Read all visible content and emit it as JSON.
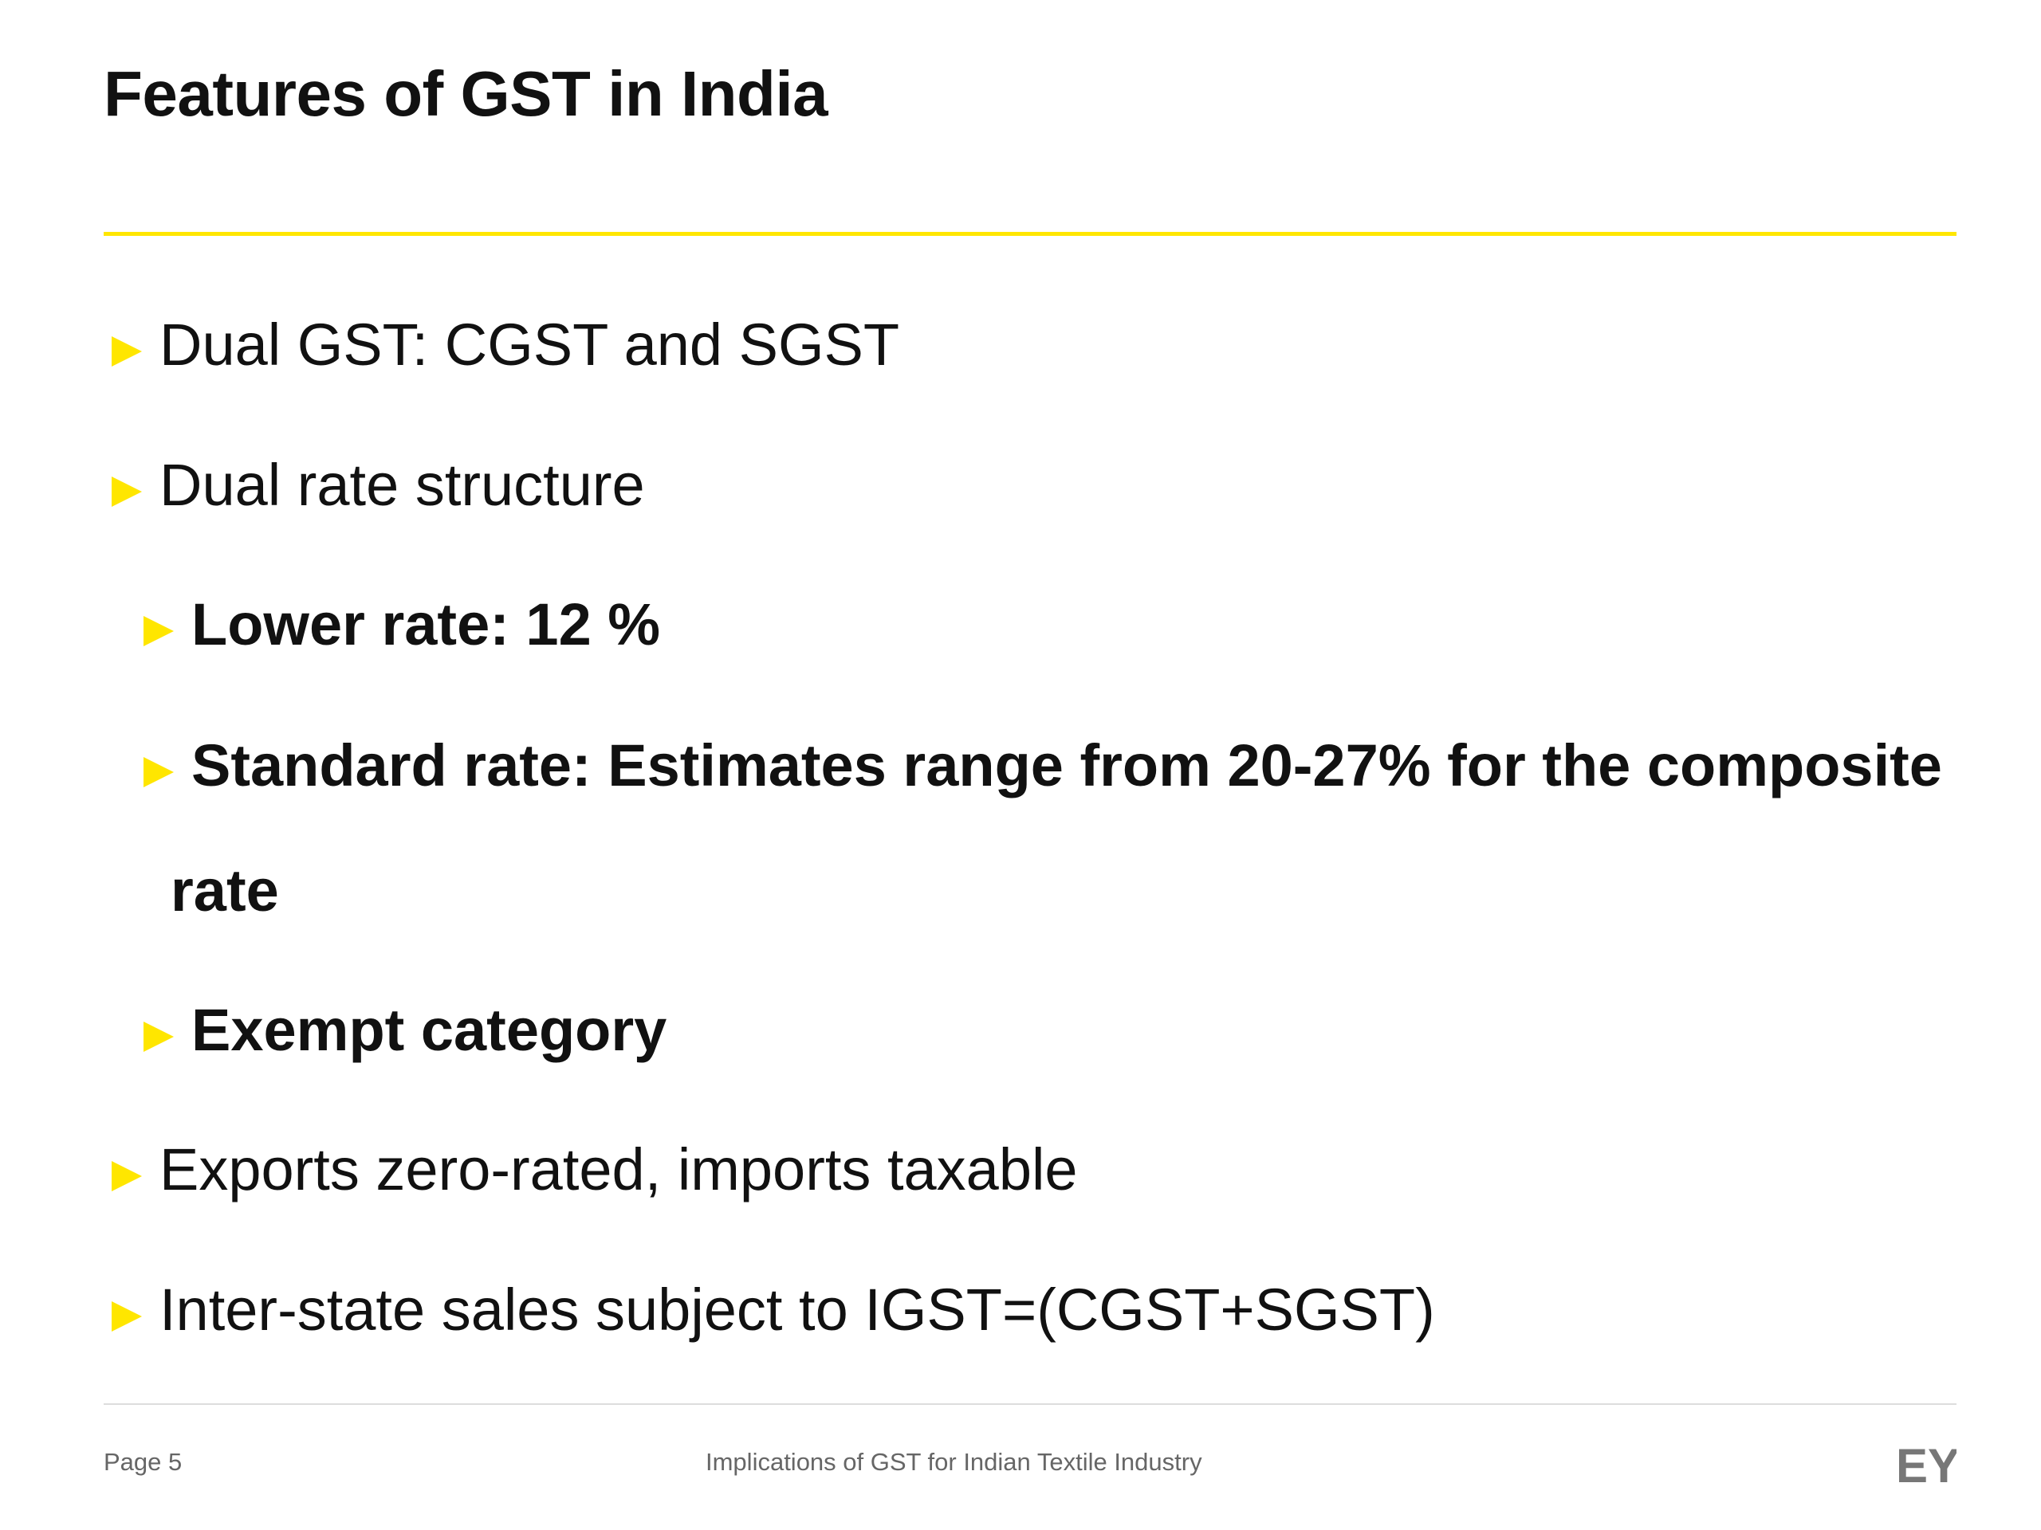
{
  "slide": {
    "title": "Features of GST in India",
    "bullets": [
      {
        "label": "Dual GST: CGST and SGST"
      },
      {
        "label": "Dual rate structure"
      },
      {
        "label": "Lower rate: 12 %"
      },
      {
        "label": "Standard rate: Estimates range from 20-27% for the composite",
        "continuation": "rate"
      },
      {
        "label": "Exempt category"
      },
      {
        "label": "Exports zero-rated, imports taxable"
      },
      {
        "label": "Inter-state sales subject to IGST=(CGST+SGST)"
      }
    ]
  },
  "footer": {
    "page": "Page 5",
    "title": "Implications of GST for Indian Textile Industry",
    "logo_text": "EY"
  },
  "colors": {
    "accent": "#FFE600",
    "text": "#111111",
    "footer_text": "#666666",
    "logo": "#777777"
  },
  "icons": {
    "bullet": "triangle-right-icon"
  }
}
